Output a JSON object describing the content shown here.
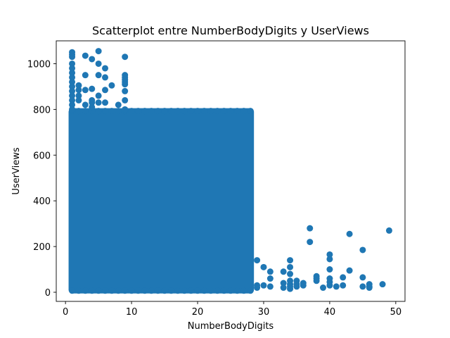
{
  "chart_data": {
    "type": "scatter",
    "title": "Scatterplot entre NumberBodyDigits y UserViews",
    "xlabel": "NumberBodyDigits",
    "ylabel": "UserViews",
    "xlim": [
      -1.4,
      51.4
    ],
    "ylim": [
      -40,
      1100
    ],
    "xticks": [
      0,
      10,
      20,
      30,
      40,
      50
    ],
    "yticks": [
      0,
      200,
      400,
      600,
      800,
      1000
    ],
    "xtick_labels": [
      "0",
      "10",
      "20",
      "30",
      "40",
      "50"
    ],
    "ytick_labels": [
      "0",
      "200",
      "400",
      "600",
      "800",
      "1000"
    ],
    "grid": false,
    "colors": {
      "points": "#1f77b4"
    },
    "dense_region": {
      "x_from": 1,
      "x_to": 28,
      "y_from": 10,
      "y_to": 790
    },
    "series": [
      {
        "x": [
          1,
          1,
          1,
          1,
          1,
          1,
          1,
          1,
          1,
          1,
          1,
          1,
          1,
          1,
          2,
          2,
          2,
          2,
          3,
          3,
          3,
          3,
          4,
          4,
          4,
          4,
          4,
          5,
          5,
          5,
          5,
          5,
          6,
          6,
          6,
          6,
          7,
          8,
          9,
          9,
          9,
          9,
          9,
          9,
          9,
          9,
          9,
          29,
          29,
          29,
          30,
          30,
          31,
          31,
          31,
          33,
          33,
          33,
          34,
          34,
          34,
          34,
          34,
          34,
          34,
          35,
          35,
          35,
          36,
          36,
          37,
          37,
          38,
          38,
          38,
          39,
          40,
          40,
          40,
          40,
          40,
          40,
          41,
          42,
          42,
          43,
          43,
          45,
          45,
          45,
          46,
          46,
          46,
          48,
          49
        ],
        "y": [
          1050,
          1040,
          1030,
          1000,
          980,
          960,
          940,
          920,
          900,
          880,
          860,
          840,
          820,
          800,
          905,
          885,
          860,
          840,
          1035,
          950,
          885,
          820,
          1020,
          890,
          840,
          830,
          810,
          1055,
          1000,
          950,
          860,
          830,
          980,
          940,
          885,
          830,
          905,
          820,
          1030,
          950,
          940,
          930,
          920,
          910,
          880,
          840,
          800,
          140,
          30,
          20,
          110,
          30,
          90,
          60,
          25,
          90,
          40,
          20,
          140,
          110,
          80,
          50,
          35,
          25,
          15,
          50,
          35,
          25,
          40,
          30,
          280,
          220,
          70,
          60,
          50,
          20,
          165,
          145,
          100,
          60,
          45,
          30,
          25,
          65,
          30,
          255,
          95,
          185,
          65,
          25,
          35,
          25,
          20,
          35,
          270
        ]
      }
    ]
  }
}
